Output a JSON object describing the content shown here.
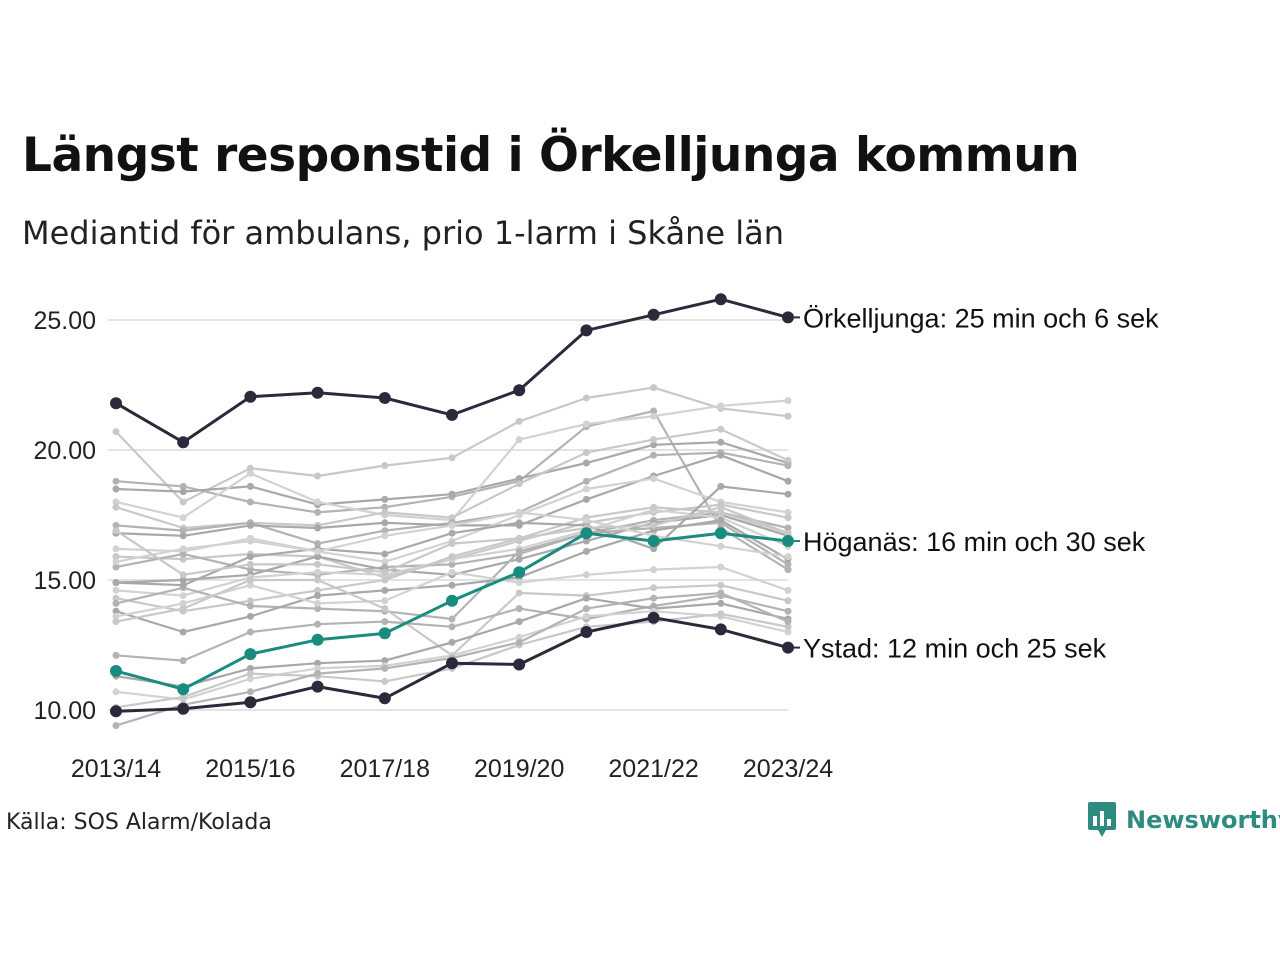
{
  "header": {
    "title": "Längst responstid i Örkelljunga kommun",
    "subtitle": "Mediantid för ambulans, prio 1-larm i Skåne län"
  },
  "footer": {
    "source": "Källa: SOS Alarm/Kolada",
    "brand": "Newsworthy"
  },
  "colors": {
    "highlight_dark": "#2b2a3a",
    "highlight_teal": "#1a8c7f",
    "background_lines": [
      "#c8c8c8",
      "#b3b3b3",
      "#a8a8a8",
      "#d2d2d2"
    ],
    "grid": "#e3e3e3",
    "brand": "#2e8b7f"
  },
  "chart_data": {
    "type": "line",
    "x": [
      "2013/14",
      "2014/15",
      "2015/16",
      "2016/17",
      "2017/18",
      "2018/19",
      "2019/20",
      "2020/21",
      "2021/22",
      "2022/23",
      "2023/24"
    ],
    "x_tick_labels": [
      "2013/14",
      "2015/16",
      "2017/18",
      "2019/20",
      "2021/22",
      "2023/24"
    ],
    "y_tick_labels": [
      "25.00",
      "20.00",
      "15.00",
      "10.00"
    ],
    "y_ticks": [
      25,
      20,
      15,
      10
    ],
    "ylim": [
      9.5,
      26.5
    ],
    "grid": true,
    "highlight_series": [
      {
        "name": "Örkelljunga",
        "label": "Örkelljunga: 25 min och 6 sek",
        "color": "#2b2a3a",
        "values": [
          21.8,
          20.3,
          22.05,
          22.2,
          22.0,
          21.35,
          22.3,
          24.6,
          25.2,
          25.8,
          25.1
        ]
      },
      {
        "name": "Höganäs",
        "label": "Höganäs: 16 min och 30 sek",
        "color": "#1a8c7f",
        "values": [
          11.5,
          10.8,
          12.15,
          12.7,
          12.95,
          14.2,
          15.3,
          16.8,
          16.5,
          16.8,
          16.5
        ]
      },
      {
        "name": "Ystad",
        "label": "Ystad: 12 min och 25 sek",
        "color": "#2b2a3a",
        "values": [
          9.95,
          10.05,
          10.3,
          10.9,
          10.45,
          11.8,
          11.75,
          13.0,
          13.55,
          13.1,
          12.4
        ]
      }
    ],
    "background_series": [
      {
        "values": [
          20.7,
          18.0,
          19.3,
          19.0,
          19.4,
          19.7,
          21.1,
          22.0,
          22.4,
          21.6,
          21.3
        ]
      },
      {
        "values": [
          18.8,
          18.6,
          18.0,
          17.6,
          17.8,
          18.2,
          18.8,
          20.9,
          21.5,
          17.0,
          15.4
        ]
      },
      {
        "values": [
          18.5,
          18.4,
          18.6,
          17.9,
          18.1,
          18.3,
          18.9,
          19.5,
          20.2,
          20.3,
          19.5
        ]
      },
      {
        "values": [
          18.0,
          17.4,
          19.1,
          18.0,
          17.5,
          17.3,
          20.4,
          21.0,
          21.3,
          21.7,
          21.9
        ]
      },
      {
        "values": [
          17.8,
          17.0,
          17.2,
          17.1,
          17.6,
          17.4,
          18.7,
          19.9,
          20.4,
          20.8,
          19.6
        ]
      },
      {
        "values": [
          17.1,
          16.9,
          17.2,
          16.4,
          16.9,
          17.2,
          17.6,
          18.8,
          19.8,
          19.9,
          19.4
        ]
      },
      {
        "values": [
          16.8,
          16.7,
          17.1,
          17.0,
          17.2,
          17.1,
          17.1,
          18.1,
          19.0,
          19.8,
          18.8
        ]
      },
      {
        "values": [
          16.2,
          16.1,
          16.6,
          16.1,
          15.7,
          16.5,
          17.5,
          18.5,
          18.9,
          18.0,
          17.6
        ]
      },
      {
        "values": [
          15.9,
          15.8,
          16.0,
          15.9,
          15.1,
          15.8,
          16.5,
          17.2,
          17.6,
          17.9,
          17.4
        ]
      },
      {
        "values": [
          15.5,
          16.0,
          15.4,
          15.2,
          15.5,
          15.6,
          16.0,
          16.8,
          17.3,
          17.6,
          17.0
        ]
      },
      {
        "values": [
          14.9,
          15.0,
          15.2,
          15.9,
          15.4,
          15.2,
          15.8,
          16.5,
          17.2,
          17.5,
          16.7
        ]
      },
      {
        "values": [
          14.6,
          14.4,
          15.1,
          15.3,
          15.2,
          15.8,
          16.2,
          16.9,
          17.7,
          17.4,
          16.3
        ]
      },
      {
        "values": [
          14.3,
          13.8,
          14.2,
          14.6,
          15.0,
          15.9,
          16.6,
          17.4,
          17.8,
          17.6,
          16.8
        ]
      },
      {
        "values": [
          14.1,
          14.7,
          14.0,
          13.9,
          13.8,
          13.5,
          16.1,
          16.8,
          17.0,
          17.2,
          15.6
        ]
      },
      {
        "values": [
          13.8,
          13.0,
          13.6,
          14.4,
          14.6,
          14.8,
          15.1,
          16.1,
          16.9,
          17.3,
          15.8
        ]
      },
      {
        "values": [
          13.6,
          14.1,
          14.8,
          14.1,
          14.2,
          15.3,
          14.9,
          15.2,
          15.4,
          15.5,
          14.6
        ]
      },
      {
        "values": [
          13.4,
          13.9,
          15.0,
          15.0,
          13.9,
          12.1,
          14.5,
          14.4,
          14.7,
          14.8,
          14.2
        ]
      },
      {
        "values": [
          12.1,
          11.9,
          13.0,
          13.3,
          13.4,
          13.2,
          13.9,
          13.5,
          14.0,
          14.4,
          13.8
        ]
      },
      {
        "values": [
          11.3,
          10.9,
          11.6,
          11.8,
          11.9,
          12.6,
          13.4,
          14.3,
          13.9,
          14.1,
          13.5
        ]
      },
      {
        "values": [
          10.7,
          10.4,
          11.2,
          11.6,
          11.7,
          12.1,
          12.8,
          13.6,
          13.8,
          13.6,
          13.0
        ]
      },
      {
        "values": [
          10.1,
          10.5,
          11.4,
          11.3,
          11.1,
          11.6,
          12.5,
          13.2,
          13.4,
          13.7,
          13.2
        ]
      },
      {
        "values": [
          9.4,
          10.2,
          10.7,
          11.4,
          11.6,
          12.0,
          12.6,
          13.9,
          14.3,
          14.5,
          13.4
        ]
      },
      {
        "values": [
          14.9,
          14.8,
          15.9,
          16.2,
          16.0,
          16.8,
          17.2,
          17.1,
          16.2,
          18.6,
          18.3
        ]
      },
      {
        "values": [
          15.7,
          16.2,
          16.5,
          16.1,
          16.7,
          17.1,
          17.6,
          17.3,
          16.7,
          16.3,
          15.9
        ]
      },
      {
        "values": [
          16.9,
          15.2,
          15.6,
          15.6,
          15.3,
          16.4,
          16.6,
          17.0,
          17.1,
          17.8,
          16.8
        ]
      }
    ]
  }
}
